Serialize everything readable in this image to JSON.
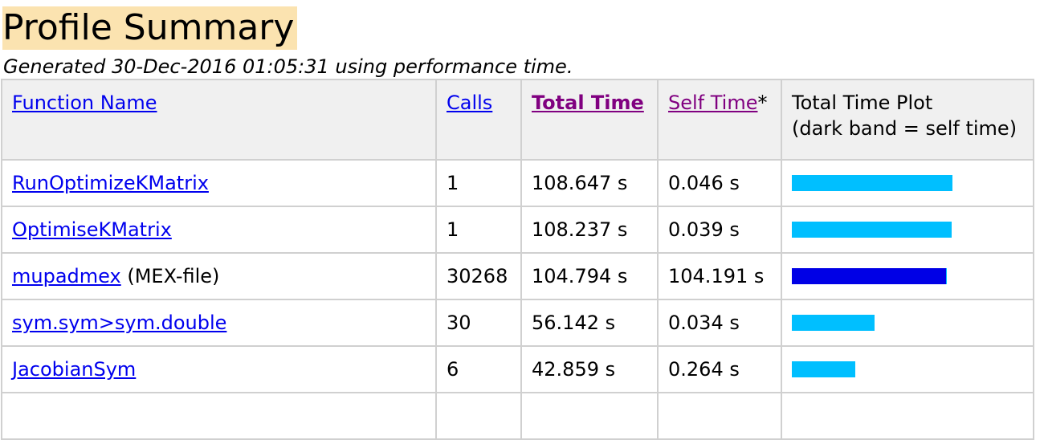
{
  "title": "Profile Summary",
  "subtitle": "Generated 30-Dec-2016 01:05:31 using performance time.",
  "columns": {
    "function_name": "Function Name",
    "calls": "Calls",
    "total_time": "Total Time",
    "self_time": "Self Time",
    "self_time_note": "*",
    "plot_line1": "Total Time Plot",
    "plot_line2": "(dark band = self time)"
  },
  "colors": {
    "bar_total": "#00bfff",
    "bar_self": "#0000e6"
  },
  "max_total": 108.647,
  "rows": [
    {
      "name": "RunOptimizeKMatrix",
      "suffix": "",
      "calls": "1",
      "total": "108.647 s",
      "self": "0.046 s",
      "total_v": 108.647,
      "self_v": 0.046
    },
    {
      "name": "OptimiseKMatrix",
      "suffix": "",
      "calls": "1",
      "total": "108.237 s",
      "self": "0.039 s",
      "total_v": 108.237,
      "self_v": 0.039
    },
    {
      "name": "mupadmex",
      "suffix": " (MEX-file)",
      "calls": "30268",
      "total": "104.794 s",
      "self": "104.191 s",
      "total_v": 104.794,
      "self_v": 104.191
    },
    {
      "name": "sym.sym>sym.double",
      "suffix": "",
      "calls": "30",
      "total": "56.142 s",
      "self": "0.034 s",
      "total_v": 56.142,
      "self_v": 0.034
    },
    {
      "name": "JacobianSym",
      "suffix": "",
      "calls": "6",
      "total": "42.859 s",
      "self": "0.264 s",
      "total_v": 42.859,
      "self_v": 0.264
    },
    {
      "name": "",
      "suffix": "",
      "calls": "",
      "total": "",
      "self": "",
      "total_v": 0,
      "self_v": 0
    }
  ]
}
